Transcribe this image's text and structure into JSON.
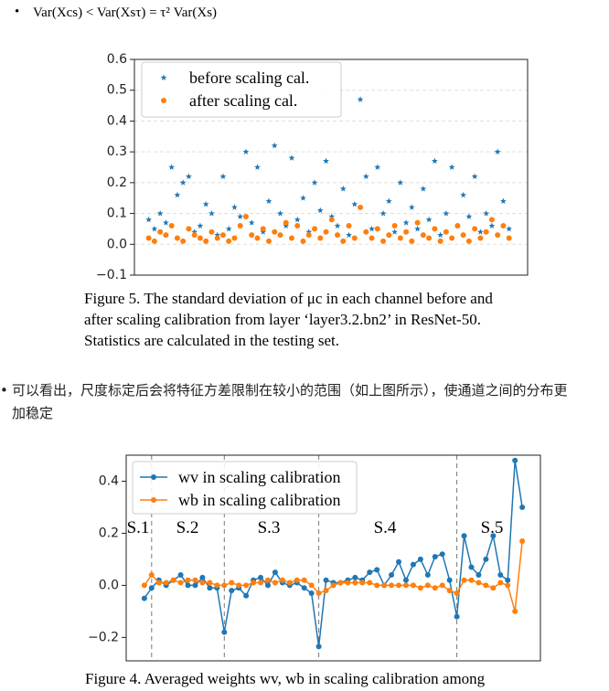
{
  "formula": "Var(Xcs) < Var(Xsτ) = τ² Var(Xs)",
  "caption5": [
    "Figure 5.  The standard deviation of μc in each channel before and",
    "after scaling calibration from layer ‘layer3.2.bn2’ in ResNet-50.",
    "Statistics are calculated in the testing set."
  ],
  "paragraph": [
    "可以看出，尺度标定后会将特征方差限制在较小的范围（如上图所示），使通道之间的分布更",
    "加稳定"
  ],
  "caption4": "Figure 4. Averaged weights wv, wb in scaling calibration among",
  "chart_data": [
    {
      "type": "scatter",
      "ylim": [
        -0.1,
        0.6
      ],
      "yticks": [
        0.6,
        0.5,
        0.4,
        0.3,
        0.2,
        0.1,
        {
          "value": 0,
          "label": "0.0"
        },
        {
          "value": -0.1,
          "label": "−0.1"
        }
      ],
      "xlim": [
        -20,
        530
      ],
      "grid": true,
      "legend": "upper left",
      "x": [
        0,
        8,
        16,
        24,
        32,
        40,
        48,
        56,
        64,
        72,
        80,
        88,
        96,
        104,
        112,
        120,
        128,
        136,
        144,
        152,
        160,
        168,
        176,
        184,
        192,
        200,
        208,
        216,
        224,
        232,
        240,
        248,
        256,
        264,
        272,
        280,
        288,
        296,
        304,
        312,
        320,
        328,
        336,
        344,
        352,
        360,
        368,
        376,
        384,
        392,
        400,
        408,
        416,
        424,
        432,
        440,
        448,
        456,
        464,
        472,
        480,
        488,
        496,
        504
      ],
      "series": [
        {
          "name": "before scaling cal.",
          "color": "#1f77b4",
          "marker": "star",
          "values": [
            0.08,
            0.05,
            0.1,
            0.07,
            0.25,
            0.16,
            0.2,
            0.22,
            0.04,
            0.06,
            0.13,
            0.1,
            0.03,
            0.22,
            0.05,
            0.12,
            0.09,
            0.3,
            0.07,
            0.25,
            0.04,
            0.14,
            0.32,
            0.1,
            0.06,
            0.28,
            0.08,
            0.15,
            0.04,
            0.2,
            0.11,
            0.27,
            0.09,
            0.06,
            0.18,
            0.03,
            0.13,
            0.47,
            0.22,
            0.05,
            0.25,
            0.1,
            0.14,
            0.04,
            0.2,
            0.07,
            0.12,
            0.05,
            0.18,
            0.08,
            0.27,
            0.03,
            0.1,
            0.25,
            0.06,
            0.16,
            0.09,
            0.22,
            0.04,
            0.1,
            0.06,
            0.3,
            0.14,
            0.05
          ]
        },
        {
          "name": "after scaling cal.",
          "color": "#ff7f0e",
          "marker": "circle",
          "values": [
            0.02,
            0.01,
            0.04,
            0.03,
            0.06,
            0.02,
            0.01,
            0.05,
            0.03,
            0.02,
            0.01,
            0.04,
            0.02,
            0.03,
            0.01,
            0.02,
            0.06,
            0.09,
            0.03,
            0.02,
            0.05,
            0.01,
            0.04,
            0.03,
            0.07,
            0.02,
            0.06,
            0.01,
            0.03,
            0.05,
            0.02,
            0.04,
            0.08,
            0.03,
            0.01,
            0.06,
            0.02,
            0.12,
            0.04,
            0.02,
            0.05,
            0.01,
            0.03,
            0.06,
            0.02,
            0.04,
            0.01,
            0.07,
            0.03,
            0.02,
            0.05,
            0.01,
            0.04,
            0.02,
            0.06,
            0.03,
            0.01,
            0.05,
            0.02,
            0.04,
            0.08,
            0.03,
            0.06,
            0.02
          ]
        }
      ]
    },
    {
      "type": "line",
      "ylim": [
        -0.29,
        0.5
      ],
      "yticks": [
        0.4,
        0.2,
        {
          "value": 0,
          "label": "0.0"
        },
        {
          "value": -0.2,
          "label": "−0.2"
        }
      ],
      "xlim": [
        -2.5,
        54.5
      ],
      "grid": false,
      "legend": "upper left",
      "dividers": [
        1,
        11,
        24,
        43
      ],
      "sections": [
        "S.1",
        "S.2",
        "S.3",
        "S.4",
        "S.5"
      ],
      "x": [
        0,
        1,
        2,
        3,
        4,
        5,
        6,
        7,
        8,
        9,
        10,
        11,
        12,
        13,
        14,
        15,
        16,
        17,
        18,
        19,
        20,
        21,
        22,
        23,
        24,
        25,
        26,
        27,
        28,
        29,
        30,
        31,
        32,
        33,
        34,
        35,
        36,
        37,
        38,
        39,
        40,
        41,
        42,
        43,
        44,
        45,
        46,
        47,
        48,
        49,
        50,
        51,
        52
      ],
      "series": [
        {
          "name": "wv in scaling calibration",
          "color": "#1f77b4",
          "values": [
            -0.05,
            -0.01,
            0.02,
            0.0,
            0.02,
            0.04,
            0.0,
            0.0,
            0.03,
            -0.01,
            -0.01,
            -0.18,
            -0.02,
            -0.01,
            -0.04,
            0.02,
            0.03,
            0.0,
            0.05,
            0.01,
            0.0,
            0.01,
            -0.01,
            -0.03,
            -0.235,
            0.02,
            0.01,
            0.01,
            0.02,
            0.03,
            0.02,
            0.05,
            0.06,
            0.0,
            0.04,
            0.09,
            0.02,
            0.08,
            0.1,
            0.04,
            0.11,
            0.12,
            0.02,
            -0.12,
            0.19,
            0.07,
            0.04,
            0.1,
            0.19,
            0.04,
            0.02,
            0.48,
            0.3
          ]
        },
        {
          "name": "wb in scaling calibration",
          "color": "#ff7f0e",
          "values": [
            0.0,
            0.04,
            0.01,
            0.01,
            0.02,
            0.01,
            0.02,
            0.02,
            0.01,
            0.01,
            0.0,
            0.0,
            0.01,
            0.0,
            0.0,
            0.01,
            0.01,
            0.02,
            0.01,
            0.02,
            0.01,
            0.02,
            0.02,
            0.0,
            -0.03,
            -0.02,
            0.0,
            0.01,
            0.01,
            0.01,
            0.01,
            0.01,
            0.0,
            0.0,
            0.0,
            0.0,
            0.0,
            0.0,
            -0.01,
            0.0,
            -0.01,
            0.0,
            -0.02,
            -0.03,
            0.02,
            0.02,
            0.01,
            0.0,
            -0.01,
            0.01,
            0.0,
            -0.1,
            0.17
          ]
        }
      ]
    }
  ]
}
